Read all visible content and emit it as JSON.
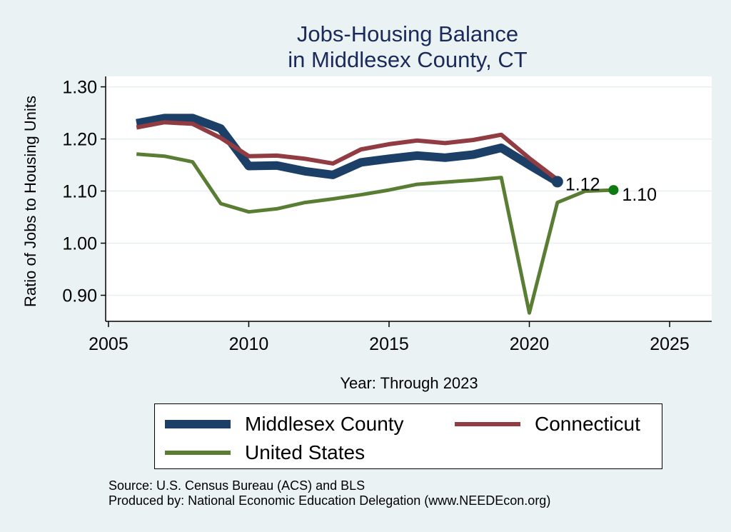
{
  "chart_data": {
    "type": "line",
    "title": [
      "Jobs-Housing Balance",
      "in Middlesex County, CT"
    ],
    "xlabel": "Year: Through 2023",
    "ylabel": "Ratio of Jobs to Housing Units",
    "xlim": [
      2004.9,
      2026.5
    ],
    "ylim": [
      0.85,
      1.32
    ],
    "xticks": [
      2005,
      2010,
      2015,
      2020,
      2025
    ],
    "yticks": [
      0.9,
      1.0,
      1.1,
      1.2,
      1.3
    ],
    "ytick_labels": [
      "0.90",
      "1.00",
      "1.10",
      "1.20",
      "1.30"
    ],
    "grid": true,
    "series": [
      {
        "name": "Middlesex County",
        "color": "#1b3f66",
        "x": [
          2006,
          2007,
          2008,
          2009,
          2010,
          2011,
          2012,
          2013,
          2014,
          2015,
          2016,
          2017,
          2018,
          2019,
          2020,
          2021
        ],
        "values": [
          1.23,
          1.24,
          1.24,
          1.22,
          1.148,
          1.149,
          1.138,
          1.131,
          1.155,
          1.162,
          1.168,
          1.164,
          1.17,
          1.183,
          1.15,
          1.118
        ],
        "end_label": "1.12"
      },
      {
        "name": "Connecticut",
        "color": "#913b42",
        "x": [
          2006,
          2007,
          2008,
          2009,
          2010,
          2011,
          2012,
          2013,
          2014,
          2015,
          2016,
          2017,
          2018,
          2019,
          2020,
          2021
        ],
        "values": [
          1.222,
          1.232,
          1.229,
          1.202,
          1.167,
          1.168,
          1.162,
          1.153,
          1.18,
          1.19,
          1.197,
          1.192,
          1.198,
          1.208,
          1.163,
          1.122
        ]
      },
      {
        "name": "United States",
        "color": "#5a7d34",
        "x": [
          2006,
          2007,
          2008,
          2009,
          2010,
          2011,
          2012,
          2013,
          2014,
          2015,
          2016,
          2017,
          2018,
          2019,
          2020,
          2021,
          2022,
          2023
        ],
        "values": [
          1.171,
          1.167,
          1.156,
          1.076,
          1.06,
          1.066,
          1.078,
          1.085,
          1.093,
          1.102,
          1.113,
          1.117,
          1.121,
          1.126,
          0.866,
          1.078,
          1.1,
          1.102
        ],
        "end_label": "1.10"
      }
    ],
    "legend": [
      "Middlesex County",
      "Connecticut",
      "United States"
    ],
    "legend_position": "bottom",
    "source_lines": [
      "Source: U.S. Census Bureau (ACS) and BLS",
      "Produced by: National Economic Education Delegation (www.NEEDEcon.org)"
    ]
  },
  "colors": {
    "background": "#eaf2f3",
    "plot_background": "#ffffff",
    "gridline": "#e6eef0",
    "title": "#1a2a5a",
    "middlesex_marker": "#1b3f66",
    "us_marker": "#0f7a0f"
  }
}
